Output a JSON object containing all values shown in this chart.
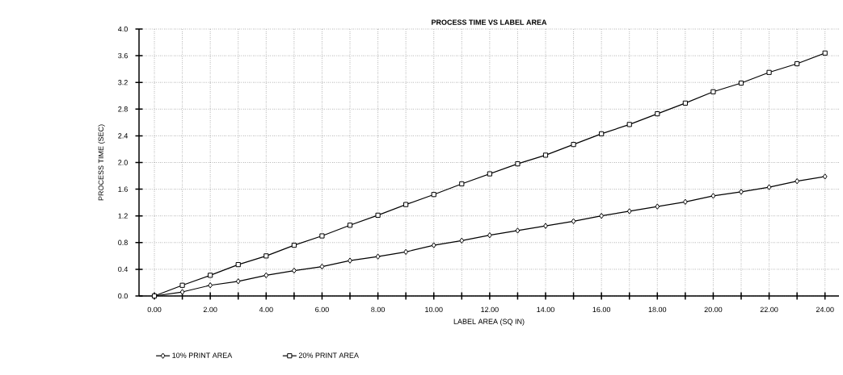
{
  "chart_data": {
    "type": "line",
    "title": "PROCESS TIME VS LABEL AREA",
    "xlabel": "LABEL AREA (SQ IN)",
    "ylabel": "PROCESS TIME (SEC)",
    "x": [
      0,
      1,
      2,
      3,
      4,
      5,
      6,
      7,
      8,
      9,
      10,
      11,
      12,
      13,
      14,
      15,
      16,
      17,
      18,
      19,
      20,
      21,
      22,
      23,
      24
    ],
    "series": [
      {
        "name": "10% PRINT AREA",
        "color": "#000000",
        "marker": "diamond",
        "values": [
          0,
          0.06,
          0.16,
          0.22,
          0.31,
          0.38,
          0.44,
          0.53,
          0.59,
          0.66,
          0.76,
          0.83,
          0.91,
          0.98,
          1.05,
          1.12,
          1.2,
          1.27,
          1.34,
          1.41,
          1.5,
          1.56,
          1.63,
          1.72,
          1.79
        ]
      },
      {
        "name": "20% PRINT AREA",
        "color": "#000000",
        "marker": "square",
        "values": [
          0,
          0.16,
          0.31,
          0.47,
          0.6,
          0.76,
          0.9,
          1.06,
          1.21,
          1.37,
          1.52,
          1.68,
          1.83,
          1.98,
          2.11,
          2.27,
          2.43,
          2.57,
          2.73,
          2.89,
          3.06,
          3.19,
          3.35,
          3.48,
          3.64
        ]
      }
    ],
    "xlim": [
      -0.55,
      24.5
    ],
    "ylim": [
      0,
      4
    ],
    "xticks": [
      {
        "value": 0,
        "label": "0.00"
      },
      {
        "value": 1,
        "label": null
      },
      {
        "value": 2,
        "label": "2.00"
      },
      {
        "value": 3,
        "label": null
      },
      {
        "value": 4,
        "label": "4.00"
      },
      {
        "value": 5,
        "label": null
      },
      {
        "value": 6,
        "label": "6.00"
      },
      {
        "value": 7,
        "label": null
      },
      {
        "value": 8,
        "label": "8.00"
      },
      {
        "value": 9,
        "label": null
      },
      {
        "value": 10,
        "label": "10.00"
      },
      {
        "value": 11,
        "label": null
      },
      {
        "value": 12,
        "label": "12.00"
      },
      {
        "value": 13,
        "label": null
      },
      {
        "value": 14,
        "label": "14.00"
      },
      {
        "value": 15,
        "label": null
      },
      {
        "value": 16,
        "label": "16.00"
      },
      {
        "value": 17,
        "label": null
      },
      {
        "value": 18,
        "label": "18.00"
      },
      {
        "value": 19,
        "label": null
      },
      {
        "value": 20,
        "label": "20.00"
      },
      {
        "value": 21,
        "label": null
      },
      {
        "value": 22,
        "label": "22.00"
      },
      {
        "value": 23,
        "label": null
      },
      {
        "value": 24,
        "label": "24.00"
      }
    ],
    "yticks": [
      {
        "value": 0,
        "label": "0.0"
      },
      {
        "value": 0.4,
        "label": "0.4"
      },
      {
        "value": 0.8,
        "label": "0.8"
      },
      {
        "value": 1.2,
        "label": "1.2"
      },
      {
        "value": 1.6,
        "label": "1.6"
      },
      {
        "value": 2.0,
        "label": "2.0"
      },
      {
        "value": 2.4,
        "label": "2.4"
      },
      {
        "value": 2.8,
        "label": "2.8"
      },
      {
        "value": 3.2,
        "label": "3.2"
      },
      {
        "value": 3.6,
        "label": "3.6"
      },
      {
        "value": 4.0,
        "label": "4.0"
      }
    ],
    "grid": true,
    "legend": "bottom left",
    "line_style": "solid"
  }
}
